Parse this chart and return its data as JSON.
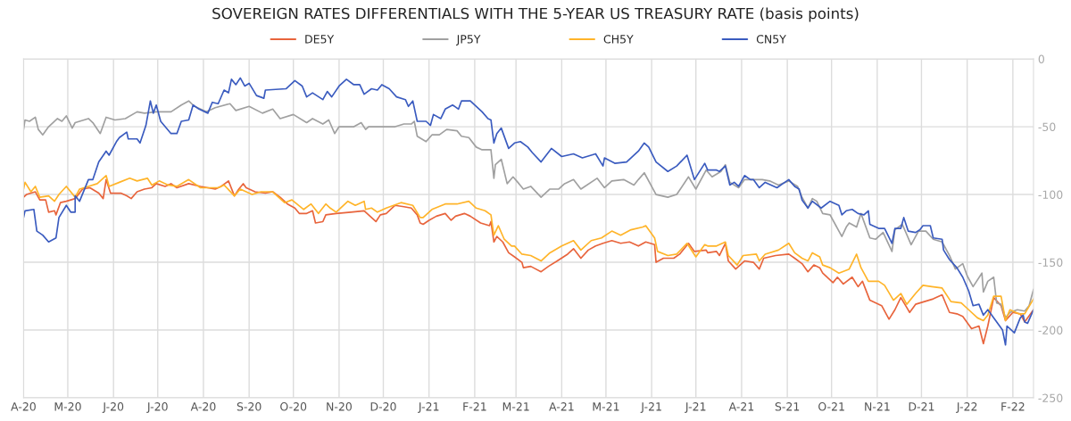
{
  "chart_data": {
    "type": "line",
    "title": "SOVEREIGN RATES DIFFERENTIALS WITH THE 5-YEAR US TREASURY RATE (basis points)",
    "xlim": [
      "2020-04-01",
      "2022-02-15"
    ],
    "ylim": [
      -250,
      0
    ],
    "yticks": [
      0,
      -50,
      -100,
      -150,
      -200,
      -250
    ],
    "xticks": [
      {
        "value": "2020-04-01",
        "label": "A-20"
      },
      {
        "value": "2020-05-01",
        "label": "M-20"
      },
      {
        "value": "2020-06-01",
        "label": "J-20"
      },
      {
        "value": "2020-07-01",
        "label": "J-20"
      },
      {
        "value": "2020-08-01",
        "label": "A-20"
      },
      {
        "value": "2020-09-01",
        "label": "S-20"
      },
      {
        "value": "2020-10-01",
        "label": "O-20"
      },
      {
        "value": "2020-11-01",
        "label": "N-20"
      },
      {
        "value": "2020-12-01",
        "label": "D-20"
      },
      {
        "value": "2021-01-01",
        "label": "J-21"
      },
      {
        "value": "2021-02-01",
        "label": "F-21"
      },
      {
        "value": "2021-03-01",
        "label": "M-21"
      },
      {
        "value": "2021-04-01",
        "label": "A-21"
      },
      {
        "value": "2021-05-01",
        "label": "M-21"
      },
      {
        "value": "2021-06-01",
        "label": "J-21"
      },
      {
        "value": "2021-07-01",
        "label": "J-21"
      },
      {
        "value": "2021-08-01",
        "label": "A-21"
      },
      {
        "value": "2021-09-01",
        "label": "S-21"
      },
      {
        "value": "2021-10-01",
        "label": "O-21"
      },
      {
        "value": "2021-11-01",
        "label": "N-21"
      },
      {
        "value": "2021-12-01",
        "label": "D-21"
      },
      {
        "value": "2022-01-01",
        "label": "J-22"
      },
      {
        "value": "2022-02-01",
        "label": "F-22"
      }
    ],
    "grid": true,
    "legend": "top",
    "marker": "none",
    "line_style": "solid",
    "series": [
      {
        "name": "DE5Y",
        "color": "#e8643c",
        "x": [
          "2020-04-01",
          "2020-04-03",
          "2020-04-09",
          "2020-04-12",
          "2020-04-16",
          "2020-04-18",
          "2020-04-22",
          "2020-04-23",
          "2020-04-26",
          "2020-04-30",
          "2020-05-06",
          "2020-05-11",
          "2020-05-16",
          "2020-05-22",
          "2020-05-25",
          "2020-05-27",
          "2020-05-30",
          "2020-06-06",
          "2020-06-10",
          "2020-06-13",
          "2020-06-17",
          "2020-06-22",
          "2020-06-27",
          "2020-06-30",
          "2020-07-06",
          "2020-07-10",
          "2020-07-14",
          "2020-07-22",
          "2020-07-30",
          "2020-08-09",
          "2020-08-13",
          "2020-08-18",
          "2020-08-22",
          "2020-08-25",
          "2020-08-28",
          "2020-08-30",
          "2020-09-05",
          "2020-09-12",
          "2020-09-17",
          "2020-09-22",
          "2020-09-27",
          "2020-10-02",
          "2020-10-05",
          "2020-10-10",
          "2020-10-14",
          "2020-10-16",
          "2020-10-21",
          "2020-10-23",
          "2020-10-30",
          "2020-11-09",
          "2020-11-18",
          "2020-11-21",
          "2020-11-26",
          "2020-11-29",
          "2020-12-03",
          "2020-12-09",
          "2020-12-15",
          "2020-12-20",
          "2020-12-24",
          "2020-12-26",
          "2020-12-28",
          "2021-01-01",
          "2021-01-06",
          "2021-01-12",
          "2021-01-16",
          "2021-01-19",
          "2021-01-25",
          "2021-01-29",
          "2021-02-05",
          "2021-02-11",
          "2021-02-12",
          "2021-02-14",
          "2021-02-16",
          "2021-02-20",
          "2021-02-24",
          "2021-02-28",
          "2021-03-05",
          "2021-03-06",
          "2021-03-11",
          "2021-03-18",
          "2021-03-23",
          "2021-03-29",
          "2021-04-05",
          "2021-04-09",
          "2021-04-14",
          "2021-04-19",
          "2021-04-24",
          "2021-04-29",
          "2021-05-05",
          "2021-05-11",
          "2021-05-17",
          "2021-05-23",
          "2021-05-28",
          "2021-06-03",
          "2021-06-04",
          "2021-06-09",
          "2021-06-16",
          "2021-06-20",
          "2021-06-26",
          "2021-06-30",
          "2021-07-08",
          "2021-07-09",
          "2021-07-15",
          "2021-07-17",
          "2021-07-21",
          "2021-07-23",
          "2021-07-28",
          "2021-08-03",
          "2021-08-09",
          "2021-08-13",
          "2021-08-16",
          "2021-08-24",
          "2021-09-02",
          "2021-09-06",
          "2021-09-11",
          "2021-09-15",
          "2021-09-19",
          "2021-09-23",
          "2021-09-25",
          "2021-10-02",
          "2021-10-05",
          "2021-10-09",
          "2021-10-15",
          "2021-10-19",
          "2021-10-22",
          "2021-10-27",
          "2021-11-04",
          "2021-11-09",
          "2021-11-13",
          "2021-11-17",
          "2021-11-23",
          "2021-11-27",
          "2021-12-03",
          "2021-12-09",
          "2021-12-15",
          "2021-12-20",
          "2021-12-25",
          "2021-12-29",
          "2022-01-04",
          "2022-01-09",
          "2022-01-12",
          "2022-01-15",
          "2022-01-19",
          "2022-01-24",
          "2022-01-27",
          "2022-02-01",
          "2022-02-06",
          "2022-02-09",
          "2022-02-15"
        ],
        "values": [
          -102,
          -100,
          -98,
          -104,
          -104,
          -113,
          -112,
          -115,
          -106,
          -105,
          -103,
          -96,
          -95,
          -99,
          -103,
          -89,
          -99,
          -99,
          -101,
          -103,
          -98,
          -96,
          -95,
          -92,
          -94,
          -92,
          -95,
          -92,
          -94,
          -96,
          -94,
          -90,
          -101,
          -96,
          -92,
          -95,
          -98,
          -99,
          -98,
          -102,
          -107,
          -110,
          -114,
          -114,
          -112,
          -121,
          -120,
          -115,
          -114,
          -113,
          -112,
          -115,
          -120,
          -115,
          -114,
          -108,
          -109,
          -110,
          -115,
          -121,
          -122,
          -119,
          -116,
          -114,
          -119,
          -116,
          -114,
          -116,
          -121,
          -123,
          -120,
          -135,
          -131,
          -135,
          -143,
          -146,
          -150,
          -154,
          -153,
          -157,
          -153,
          -149,
          -144,
          -140,
          -147,
          -141,
          -138,
          -136,
          -134,
          -136,
          -135,
          -138,
          -135,
          -137,
          -150,
          -147,
          -147,
          -144,
          -136,
          -142,
          -141,
          -143,
          -142,
          -145,
          -136,
          -149,
          -155,
          -149,
          -150,
          -155,
          -147,
          -145,
          -144,
          -147,
          -151,
          -157,
          -152,
          -154,
          -158,
          -165,
          -161,
          -166,
          -161,
          -168,
          -164,
          -178,
          -182,
          -192,
          -185,
          -176,
          -187,
          -181,
          -179,
          -177,
          -174,
          -187,
          -188,
          -190,
          -199,
          -197,
          -210,
          -197,
          -176,
          -182,
          -193,
          -187,
          -188,
          -194,
          -185
        ]
      },
      {
        "name": "JP5Y",
        "color": "#a0a0a0",
        "x": [
          "2020-04-01",
          "2020-04-02",
          "2020-04-05",
          "2020-04-09",
          "2020-04-11",
          "2020-04-14",
          "2020-04-18",
          "2020-04-24",
          "2020-04-27",
          "2020-04-30",
          "2020-05-04",
          "2020-05-06",
          "2020-05-15",
          "2020-05-18",
          "2020-05-23",
          "2020-05-27",
          "2020-06-02",
          "2020-06-09",
          "2020-06-17",
          "2020-06-22",
          "2020-06-30",
          "2020-07-10",
          "2020-07-17",
          "2020-07-22",
          "2020-07-26",
          "2020-08-03",
          "2020-08-09",
          "2020-08-19",
          "2020-08-23",
          "2020-09-01",
          "2020-09-10",
          "2020-09-17",
          "2020-09-22",
          "2020-10-01",
          "2020-10-10",
          "2020-10-14",
          "2020-10-21",
          "2020-10-25",
          "2020-10-29",
          "2020-11-01",
          "2020-11-11",
          "2020-11-16",
          "2020-11-19",
          "2020-11-21",
          "2020-11-25",
          "2020-12-03",
          "2020-12-09",
          "2020-12-15",
          "2020-12-20",
          "2020-12-22",
          "2020-12-24",
          "2020-12-30",
          "2021-01-03",
          "2021-01-08",
          "2021-01-13",
          "2021-01-20",
          "2021-01-23",
          "2021-01-28",
          "2021-02-02",
          "2021-02-06",
          "2021-02-12",
          "2021-02-14",
          "2021-02-15",
          "2021-02-19",
          "2021-02-23",
          "2021-02-27",
          "2021-03-03",
          "2021-03-06",
          "2021-03-11",
          "2021-03-18",
          "2021-03-24",
          "2021-03-30",
          "2021-04-03",
          "2021-04-09",
          "2021-04-14",
          "2021-04-25",
          "2021-04-30",
          "2021-05-05",
          "2021-05-13",
          "2021-05-20",
          "2021-05-23",
          "2021-05-27",
          "2021-06-04",
          "2021-06-12",
          "2021-06-18",
          "2021-06-26",
          "2021-07-01",
          "2021-07-08",
          "2021-07-12",
          "2021-07-18",
          "2021-07-21",
          "2021-07-24",
          "2021-07-30",
          "2021-08-03",
          "2021-08-15",
          "2021-08-20",
          "2021-08-26",
          "2021-09-02",
          "2021-09-08",
          "2021-09-11",
          "2021-09-15",
          "2021-09-18",
          "2021-09-21",
          "2021-09-25",
          "2021-09-30",
          "2021-10-04",
          "2021-10-08",
          "2021-10-11",
          "2021-10-13",
          "2021-10-18",
          "2021-10-21",
          "2021-10-27",
          "2021-10-31",
          "2021-11-05",
          "2021-11-11",
          "2021-11-13",
          "2021-11-18",
          "2021-11-24",
          "2021-11-29",
          "2021-12-04",
          "2021-12-09",
          "2021-12-15",
          "2021-12-20",
          "2021-12-24",
          "2021-12-29",
          "2022-01-01",
          "2022-01-05",
          "2022-01-11",
          "2022-01-12",
          "2022-01-15",
          "2022-01-19",
          "2022-01-21",
          "2022-01-24",
          "2022-01-27",
          "2022-01-30",
          "2022-02-04",
          "2022-02-09",
          "2022-02-12",
          "2022-02-15"
        ],
        "values": [
          -52,
          -45,
          -46,
          -43,
          -52,
          -56,
          -50,
          -44,
          -46,
          -42,
          -51,
          -47,
          -44,
          -47,
          -55,
          -43,
          -45,
          -44,
          -39,
          -40,
          -39,
          -39,
          -34,
          -31,
          -35,
          -39,
          -36,
          -33,
          -38,
          -35,
          -40,
          -37,
          -44,
          -41,
          -47,
          -44,
          -48,
          -45,
          -55,
          -50,
          -50,
          -47,
          -52,
          -50,
          -50,
          -50,
          -50,
          -48,
          -48,
          -46,
          -57,
          -61,
          -56,
          -56,
          -52,
          -53,
          -57,
          -58,
          -65,
          -67,
          -67,
          -88,
          -78,
          -74,
          -92,
          -87,
          -92,
          -96,
          -94,
          -102,
          -96,
          -96,
          -92,
          -89,
          -96,
          -88,
          -95,
          -90,
          -89,
          -93,
          -89,
          -84,
          -100,
          -102,
          -100,
          -87,
          -96,
          -82,
          -87,
          -83,
          -78,
          -91,
          -95,
          -89,
          -89,
          -90,
          -93,
          -90,
          -94,
          -102,
          -110,
          -103,
          -105,
          -114,
          -115,
          -123,
          -131,
          -124,
          -121,
          -124,
          -114,
          -132,
          -133,
          -128,
          -142,
          -126,
          -122,
          -137,
          -127,
          -127,
          -133,
          -135,
          -145,
          -155,
          -151,
          -160,
          -168,
          -158,
          -172,
          -164,
          -161,
          -180,
          -181,
          -191,
          -187,
          -185,
          -186,
          -182,
          -170
        ]
      },
      {
        "name": "CH5Y",
        "color": "#ffb429",
        "x": [
          "2020-04-01",
          "2020-04-02",
          "2020-04-06",
          "2020-04-09",
          "2020-04-12",
          "2020-04-18",
          "2020-04-22",
          "2020-04-25",
          "2020-04-30",
          "2020-05-06",
          "2020-05-09",
          "2020-05-15",
          "2020-05-21",
          "2020-05-27",
          "2020-05-29",
          "2020-06-05",
          "2020-06-12",
          "2020-06-17",
          "2020-06-24",
          "2020-06-27",
          "2020-07-02",
          "2020-07-08",
          "2020-07-14",
          "2020-07-22",
          "2020-07-30",
          "2020-08-11",
          "2020-08-15",
          "2020-08-22",
          "2020-08-26",
          "2020-09-03",
          "2020-09-09",
          "2020-09-17",
          "2020-09-25",
          "2020-09-30",
          "2020-10-08",
          "2020-10-13",
          "2020-10-18",
          "2020-10-23",
          "2020-10-26",
          "2020-10-30",
          "2020-11-07",
          "2020-11-12",
          "2020-11-18",
          "2020-11-19",
          "2020-11-23",
          "2020-11-27",
          "2020-12-03",
          "2020-12-13",
          "2020-12-21",
          "2020-12-26",
          "2020-12-28",
          "2021-01-03",
          "2021-01-12",
          "2021-01-20",
          "2021-01-28",
          "2021-02-02",
          "2021-02-08",
          "2021-02-12",
          "2021-02-14",
          "2021-02-17",
          "2021-02-21",
          "2021-02-26",
          "2021-02-28",
          "2021-03-05",
          "2021-03-11",
          "2021-03-18",
          "2021-03-24",
          "2021-04-01",
          "2021-04-09",
          "2021-04-14",
          "2021-04-21",
          "2021-04-28",
          "2021-05-05",
          "2021-05-11",
          "2021-05-18",
          "2021-05-26",
          "2021-05-28",
          "2021-06-03",
          "2021-06-05",
          "2021-06-12",
          "2021-06-18",
          "2021-06-25",
          "2021-07-01",
          "2021-07-07",
          "2021-07-09",
          "2021-07-15",
          "2021-07-21",
          "2021-07-23",
          "2021-07-29",
          "2021-08-02",
          "2021-08-11",
          "2021-08-13",
          "2021-08-17",
          "2021-08-26",
          "2021-09-02",
          "2021-09-06",
          "2021-09-11",
          "2021-09-15",
          "2021-09-18",
          "2021-09-23",
          "2021-09-25",
          "2021-09-30",
          "2021-10-06",
          "2021-10-13",
          "2021-10-18",
          "2021-10-21",
          "2021-10-26",
          "2021-11-02",
          "2021-11-06",
          "2021-11-12",
          "2021-11-15",
          "2021-11-17",
          "2021-11-21",
          "2021-11-27",
          "2021-12-02",
          "2021-12-08",
          "2021-12-15",
          "2021-12-21",
          "2021-12-28",
          "2022-01-02",
          "2022-01-08",
          "2022-01-12",
          "2022-01-15",
          "2022-01-19",
          "2022-01-24",
          "2022-01-27",
          "2022-01-30",
          "2022-02-05",
          "2022-02-09",
          "2022-02-15"
        ],
        "values": [
          -96,
          -91,
          -98,
          -94,
          -102,
          -101,
          -105,
          -100,
          -94,
          -102,
          -96,
          -94,
          -92,
          -86,
          -94,
          -91,
          -88,
          -90,
          -88,
          -93,
          -90,
          -93,
          -94,
          -89,
          -95,
          -95,
          -93,
          -101,
          -96,
          -100,
          -98,
          -98,
          -106,
          -104,
          -111,
          -107,
          -114,
          -107,
          -110,
          -113,
          -105,
          -108,
          -105,
          -111,
          -110,
          -113,
          -110,
          -106,
          -108,
          -117,
          -117,
          -111,
          -107,
          -107,
          -105,
          -110,
          -112,
          -115,
          -130,
          -123,
          -133,
          -138,
          -138,
          -144,
          -145,
          -149,
          -143,
          -138,
          -134,
          -141,
          -134,
          -132,
          -127,
          -130,
          -126,
          -124,
          -123,
          -132,
          -142,
          -145,
          -144,
          -136,
          -146,
          -137,
          -138,
          -138,
          -135,
          -145,
          -152,
          -145,
          -144,
          -149,
          -144,
          -141,
          -136,
          -143,
          -147,
          -149,
          -143,
          -146,
          -152,
          -154,
          -158,
          -155,
          -144,
          -154,
          -164,
          -164,
          -167,
          -178,
          -175,
          -173,
          -181,
          -173,
          -167,
          -168,
          -169,
          -179,
          -180,
          -185,
          -191,
          -193,
          -189,
          -175,
          -175,
          -193,
          -185,
          -188,
          -188,
          -177
        ]
      },
      {
        "name": "CN5Y",
        "color": "#3a5bbf",
        "x": [
          "2020-04-01",
          "2020-04-02",
          "2020-04-08",
          "2020-04-10",
          "2020-04-14",
          "2020-04-18",
          "2020-04-23",
          "2020-04-25",
          "2020-04-30",
          "2020-05-03",
          "2020-05-06",
          "2020-05-06",
          "2020-05-09",
          "2020-05-15",
          "2020-05-18",
          "2020-05-22",
          "2020-05-27",
          "2020-05-29",
          "2020-06-03",
          "2020-06-05",
          "2020-06-10",
          "2020-06-11",
          "2020-06-17",
          "2020-06-19",
          "2020-06-23",
          "2020-06-26",
          "2020-06-28",
          "2020-06-30",
          "2020-07-03",
          "2020-07-10",
          "2020-07-14",
          "2020-07-17",
          "2020-07-22",
          "2020-07-25",
          "2020-07-29",
          "2020-08-04",
          "2020-08-07",
          "2020-08-11",
          "2020-08-15",
          "2020-08-18",
          "2020-08-20",
          "2020-08-23",
          "2020-08-26",
          "2020-08-29",
          "2020-09-01",
          "2020-09-06",
          "2020-09-11",
          "2020-09-12",
          "2020-09-26",
          "2020-10-02",
          "2020-10-07",
          "2020-10-10",
          "2020-10-14",
          "2020-10-21",
          "2020-10-24",
          "2020-10-27",
          "2020-11-01",
          "2020-11-06",
          "2020-11-11",
          "2020-11-15",
          "2020-11-18",
          "2020-11-23",
          "2020-11-27",
          "2020-11-30",
          "2020-12-05",
          "2020-12-10",
          "2020-12-16",
          "2020-12-18",
          "2020-12-21",
          "2020-12-24",
          "2020-12-30",
          "2021-01-02",
          "2021-01-04",
          "2021-01-09",
          "2021-01-12",
          "2021-01-17",
          "2021-01-21",
          "2021-01-23",
          "2021-01-29",
          "2021-02-06",
          "2021-02-10",
          "2021-02-12",
          "2021-02-14",
          "2021-02-16",
          "2021-02-19",
          "2021-02-24",
          "2021-02-28",
          "2021-03-04",
          "2021-03-09",
          "2021-03-12",
          "2021-03-18",
          "2021-03-25",
          "2021-04-01",
          "2021-04-09",
          "2021-04-15",
          "2021-04-24",
          "2021-04-29",
          "2021-04-30",
          "2021-05-07",
          "2021-05-15",
          "2021-05-23",
          "2021-05-27",
          "2021-05-30",
          "2021-06-04",
          "2021-06-12",
          "2021-06-18",
          "2021-06-25",
          "2021-06-30",
          "2021-07-07",
          "2021-07-09",
          "2021-07-15",
          "2021-07-17",
          "2021-07-19",
          "2021-07-21",
          "2021-07-24",
          "2021-07-27",
          "2021-07-30",
          "2021-08-03",
          "2021-08-07",
          "2021-08-09",
          "2021-08-13",
          "2021-08-17",
          "2021-08-21",
          "2021-08-25",
          "2021-08-29",
          "2021-09-02",
          "2021-09-06",
          "2021-09-09",
          "2021-09-11",
          "2021-09-15",
          "2021-09-18",
          "2021-09-24",
          "2021-09-30",
          "2021-10-06",
          "2021-10-08",
          "2021-10-11",
          "2021-10-15",
          "2021-10-19",
          "2021-10-23",
          "2021-10-26",
          "2021-10-27",
          "2021-11-02",
          "2021-11-06",
          "2021-11-11",
          "2021-11-13",
          "2021-11-17",
          "2021-11-19",
          "2021-11-22",
          "2021-11-27",
          "2021-11-30",
          "2021-12-02",
          "2021-12-07",
          "2021-12-09",
          "2021-12-15",
          "2021-12-16",
          "2021-12-20",
          "2021-12-25",
          "2021-12-29",
          "2022-01-02",
          "2022-01-05",
          "2022-01-09",
          "2022-01-12",
          "2022-01-15",
          "2022-01-25",
          "2022-01-27",
          "2022-01-28",
          "2022-02-02",
          "2022-02-06",
          "2022-02-08",
          "2022-02-09",
          "2022-02-11",
          "2022-02-15"
        ],
        "values": [
          -117,
          -112,
          -111,
          -127,
          -130,
          -135,
          -132,
          -117,
          -108,
          -113,
          -113,
          -101,
          -105,
          -89,
          -89,
          -76,
          -68,
          -71,
          -61,
          -58,
          -54,
          -59,
          -59,
          -62,
          -49,
          -31,
          -40,
          -34,
          -46,
          -55,
          -55,
          -46,
          -45,
          -34,
          -37,
          -40,
          -32,
          -33,
          -23,
          -25,
          -15,
          -19,
          -14,
          -20,
          -18,
          -27,
          -29,
          -23,
          -22,
          -16,
          -20,
          -28,
          -25,
          -30,
          -24,
          -28,
          -20,
          -15,
          -19,
          -19,
          -26,
          -22,
          -23,
          -19,
          -22,
          -28,
          -30,
          -35,
          -31,
          -46,
          -46,
          -49,
          -41,
          -44,
          -37,
          -34,
          -37,
          -31,
          -31,
          -39,
          -44,
          -45,
          -62,
          -55,
          -51,
          -66,
          -62,
          -61,
          -65,
          -69,
          -76,
          -66,
          -72,
          -70,
          -73,
          -70,
          -79,
          -73,
          -77,
          -76,
          -68,
          -62,
          -65,
          -76,
          -83,
          -79,
          -71,
          -89,
          -77,
          -82,
          -82,
          -83,
          -81,
          -79,
          -93,
          -91,
          -94,
          -86,
          -89,
          -89,
          -95,
          -91,
          -93,
          -95,
          -92,
          -89,
          -94,
          -96,
          -104,
          -110,
          -105,
          -110,
          -105,
          -108,
          -115,
          -112,
          -111,
          -114,
          -115,
          -112,
          -122,
          -125,
          -125,
          -136,
          -125,
          -125,
          -117,
          -127,
          -128,
          -126,
          -123,
          -123,
          -132,
          -133,
          -141,
          -148,
          -154,
          -161,
          -171,
          -182,
          -181,
          -189,
          -185,
          -200,
          -211,
          -197,
          -202,
          -191,
          -189,
          -194,
          -195,
          -185
        ]
      }
    ]
  }
}
